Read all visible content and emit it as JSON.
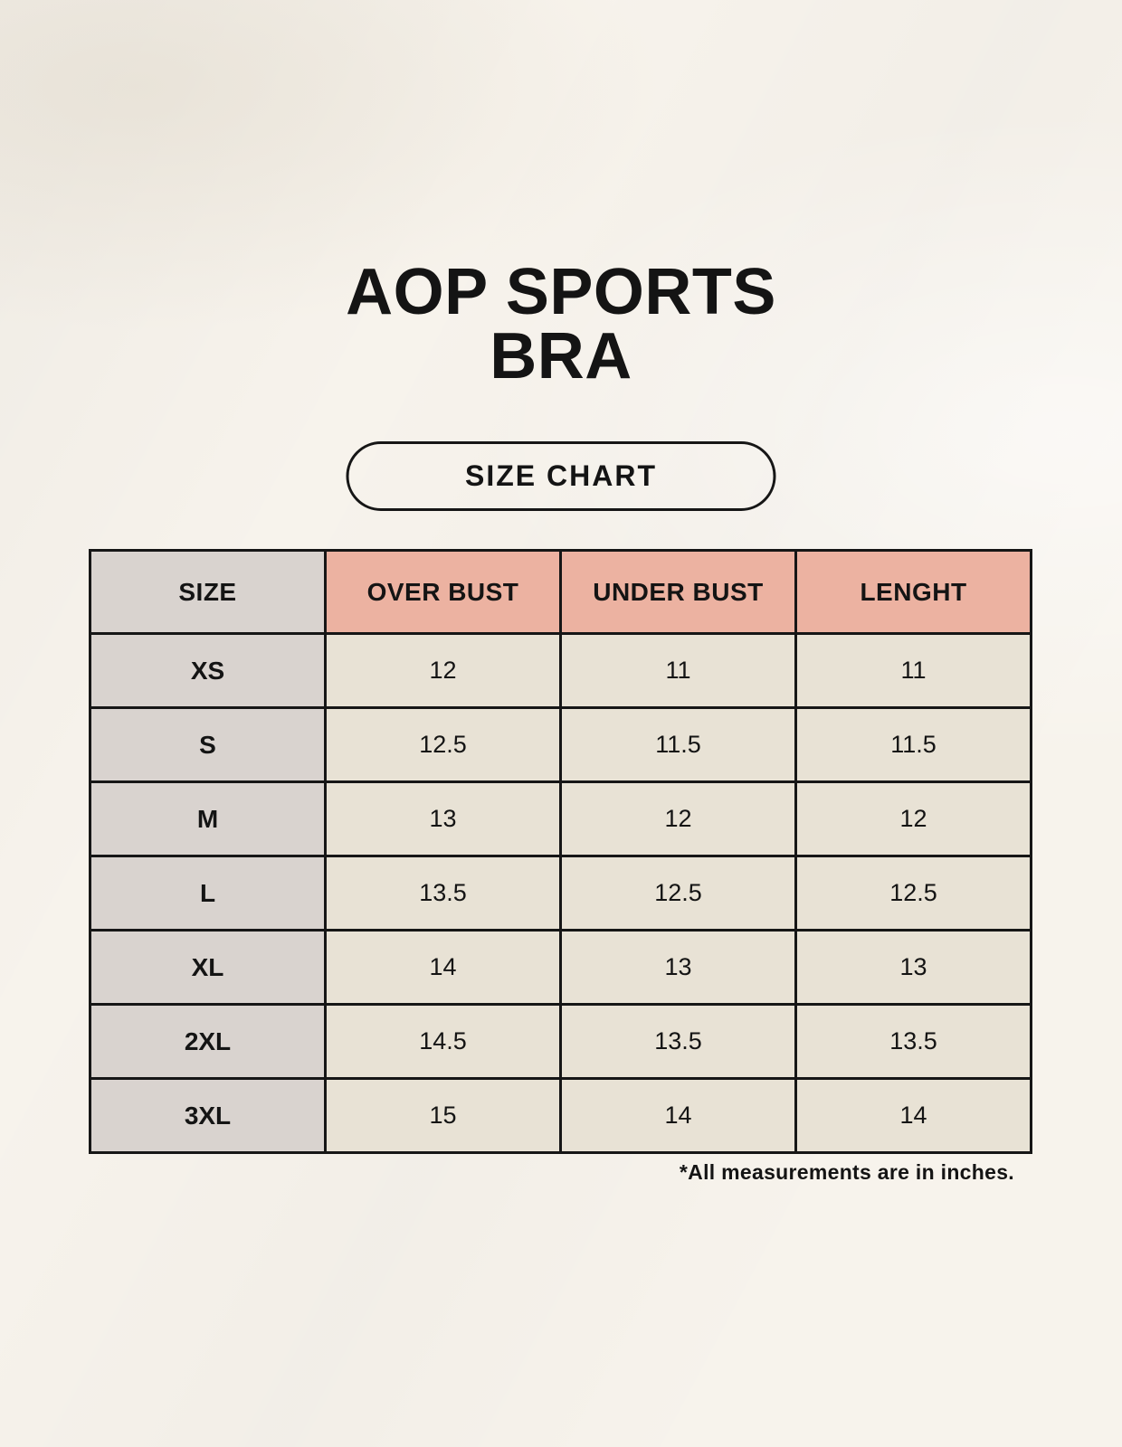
{
  "header": {
    "title_line1": "AOP SPORTS",
    "title_line2": "BRA",
    "badge_label": "SIZE CHART"
  },
  "chart_data": {
    "type": "table",
    "title": "AOP SPORTS BRA",
    "subtitle": "SIZE CHART",
    "columns": [
      "SIZE",
      "OVER BUST",
      "UNDER BUST",
      "LENGHT"
    ],
    "rows": [
      {
        "size": "XS",
        "over_bust": "12",
        "under_bust": "11",
        "length": "11"
      },
      {
        "size": "S",
        "over_bust": "12.5",
        "under_bust": "11.5",
        "length": "11.5"
      },
      {
        "size": "M",
        "over_bust": "13",
        "under_bust": "12",
        "length": "12"
      },
      {
        "size": "L",
        "over_bust": "13.5",
        "under_bust": "12.5",
        "length": "12.5"
      },
      {
        "size": "XL",
        "over_bust": "14",
        "under_bust": "13",
        "length": "13"
      },
      {
        "size": "2XL",
        "over_bust": "14.5",
        "under_bust": "13.5",
        "length": "13.5"
      },
      {
        "size": "3XL",
        "over_bust": "15",
        "under_bust": "14",
        "length": "14"
      }
    ],
    "annotations": [
      "*All measurements are in inches."
    ],
    "legend_position": "none",
    "grid": true
  },
  "footer": {
    "note": "*All measurements are in inches."
  },
  "colors": {
    "background": "#f7f3ec",
    "size_column_bg": "#d9d3cf",
    "accent_header_bg": "#ecb2a1",
    "value_cell_bg": "#e8e2d5",
    "border": "#161616",
    "text": "#141414"
  }
}
